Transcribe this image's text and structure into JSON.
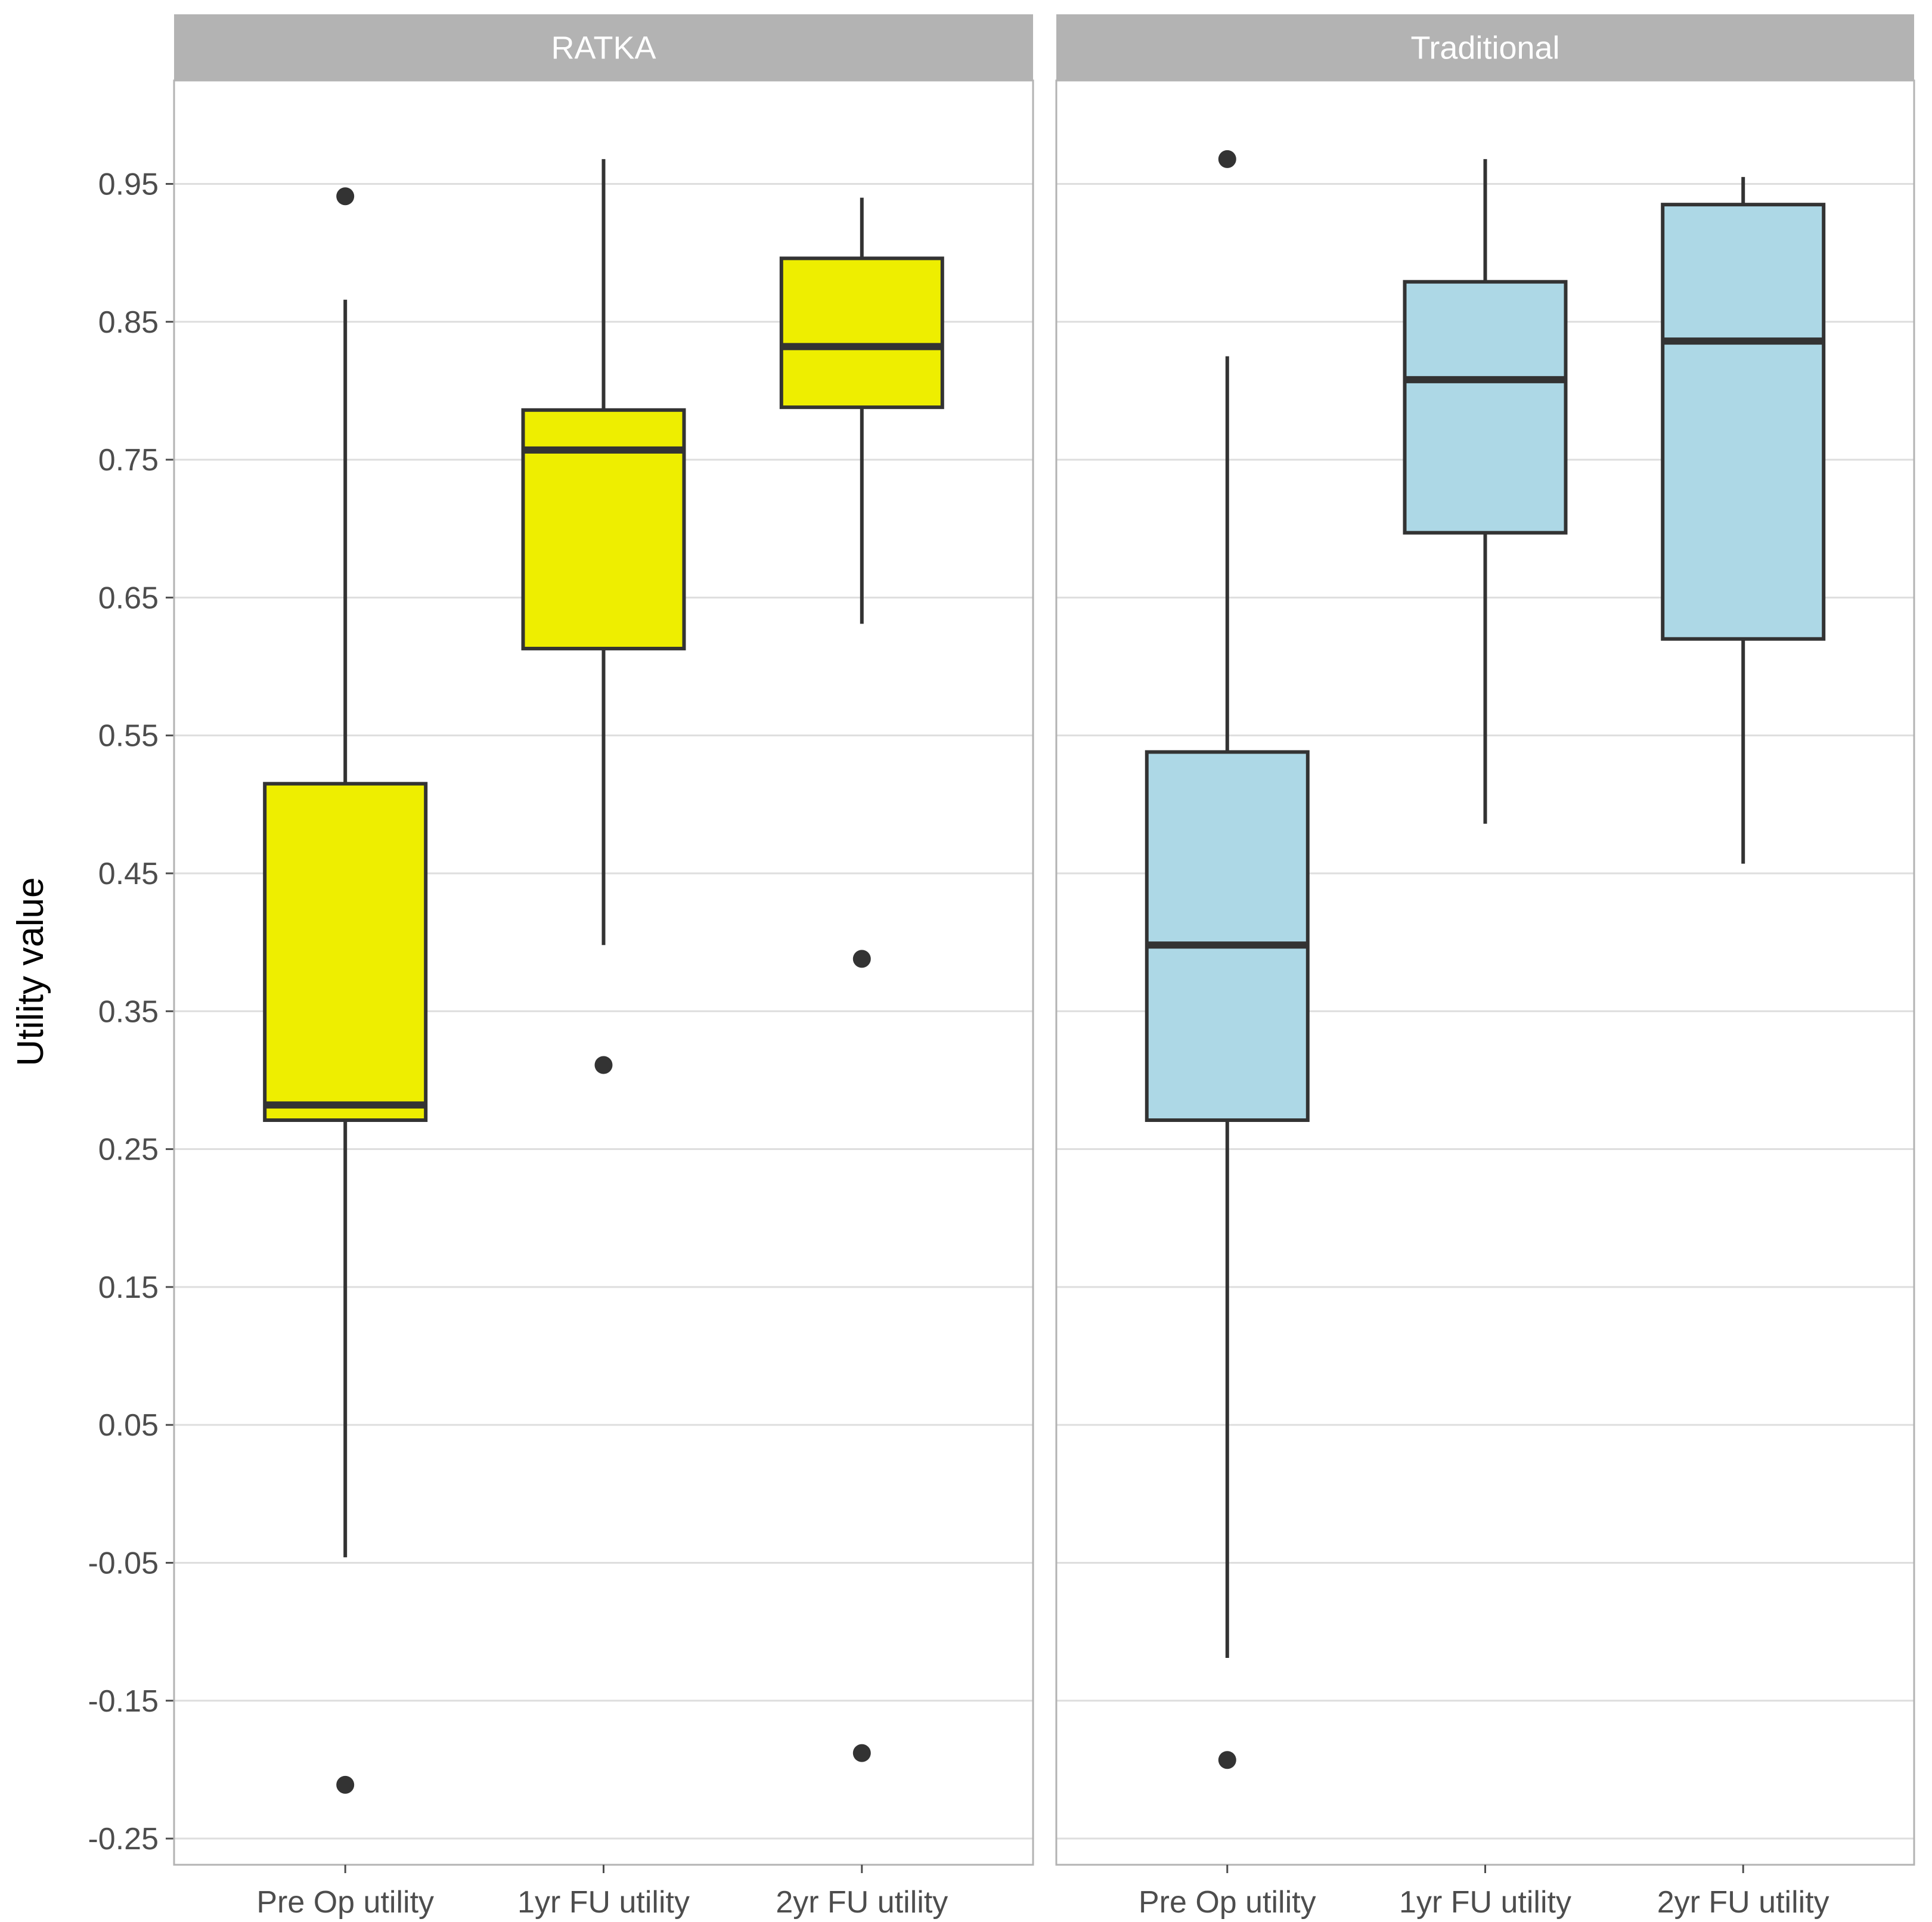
{
  "chart_data": {
    "type": "boxplot",
    "ylabel": "Utility value",
    "xlabel": "",
    "ylim": [
      -0.269,
      1.025
    ],
    "yticks": [
      "0.95",
      "0.85",
      "0.75",
      "0.65",
      "0.55",
      "0.45",
      "0.35",
      "0.25",
      "0.15",
      "0.05",
      "-0.05",
      "-0.15",
      "-0.25"
    ],
    "categories": [
      "Pre Op utility",
      "1yr FU utility",
      "2yr FU utility"
    ],
    "panels": [
      {
        "name": "RATKA",
        "fill": "#eeee00",
        "boxes": [
          {
            "category": "Pre Op utility",
            "whisker_low": -0.046,
            "q1": 0.271,
            "median": 0.282,
            "q3": 0.515,
            "whisker_high": 0.866,
            "outliers": [
              0.941,
              -0.211
            ]
          },
          {
            "category": "1yr FU utility",
            "whisker_low": 0.398,
            "q1": 0.613,
            "median": 0.757,
            "q3": 0.786,
            "whisker_high": 0.968,
            "outliers": [
              0.311
            ]
          },
          {
            "category": "2yr FU utility",
            "whisker_low": 0.631,
            "q1": 0.788,
            "median": 0.832,
            "q3": 0.896,
            "whisker_high": 0.94,
            "outliers": [
              0.388,
              -0.188
            ]
          }
        ]
      },
      {
        "name": "Traditional",
        "fill": "#add8e6",
        "boxes": [
          {
            "category": "Pre Op utility",
            "whisker_low": -0.119,
            "q1": 0.271,
            "median": 0.398,
            "q3": 0.538,
            "whisker_high": 0.825,
            "outliers": [
              0.968,
              -0.193
            ]
          },
          {
            "category": "1yr FU utility",
            "whisker_low": 0.486,
            "q1": 0.697,
            "median": 0.808,
            "q3": 0.879,
            "whisker_high": 0.968,
            "outliers": []
          },
          {
            "category": "2yr FU utility",
            "whisker_low": 0.457,
            "q1": 0.62,
            "median": 0.836,
            "q3": 0.935,
            "whisker_high": 0.955,
            "outliers": []
          }
        ]
      }
    ]
  }
}
